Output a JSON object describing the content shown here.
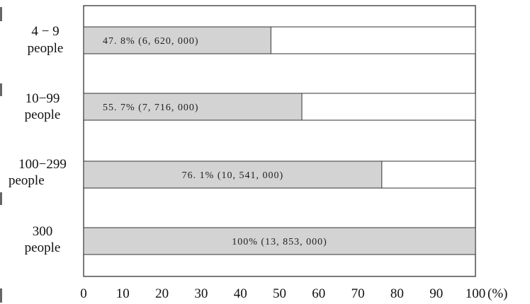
{
  "chart_data": {
    "type": "bar",
    "orientation": "horizontal",
    "categories": [
      "4 − 9 people",
      "10−99 people",
      "100−299 people",
      "300 people"
    ],
    "category_lines": [
      [
        "4 − 9",
        "people"
      ],
      [
        "10−99",
        "people"
      ],
      [
        "100−299",
        "people"
      ],
      [
        "300",
        "people"
      ]
    ],
    "values": [
      47.8,
      55.7,
      76.1,
      100
    ],
    "data_labels": [
      "47. 8%  (6, 620, 000)",
      "55. 7%  (7, 716, 000)",
      "76. 1%  (10, 541, 000)",
      "100%  (13, 853, 000)"
    ],
    "xlim": [
      0,
      100
    ],
    "xticks": [
      0,
      10,
      20,
      30,
      40,
      50,
      60,
      70,
      80,
      90,
      100
    ],
    "x_unit": "(%)",
    "grid": false,
    "bar_color": "#d3d3d3",
    "bar_outline": "#333333"
  }
}
